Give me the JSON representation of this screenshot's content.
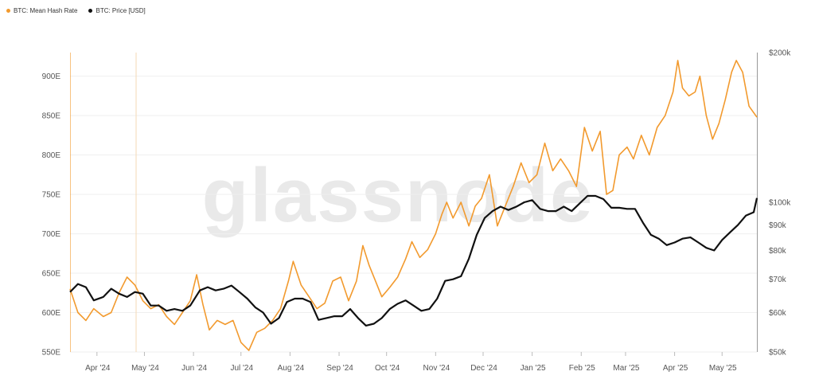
{
  "legend": {
    "items": [
      {
        "label": "BTC: Mean Hash Rate",
        "color": "#f29a2e"
      },
      {
        "label": "BTC: Price [USD]",
        "color": "#111111"
      }
    ]
  },
  "watermark": "glassnode",
  "chart_data": {
    "type": "line",
    "title": "",
    "xlabel": "",
    "ylabel": "",
    "x_tick_labels": [
      "Apr '24",
      "May '24",
      "Jun '24",
      "Jul '24",
      "Aug '24",
      "Sep '24",
      "Oct '24",
      "Nov '24",
      "Dec '24",
      "Jan '25",
      "Feb '25",
      "Mar '25",
      "Apr '25",
      "May '25"
    ],
    "x_range": [
      "2024-03-15",
      "2025-05-23"
    ],
    "left_axis": {
      "ticks": [
        "550E",
        "600E",
        "650E",
        "700E",
        "750E",
        "800E",
        "850E",
        "900E"
      ],
      "ylim": [
        550,
        930
      ],
      "unit": "EH/s"
    },
    "right_axis": {
      "ticks": [
        {
          "label": "$50k",
          "value": 50000
        },
        {
          "label": "$60k",
          "value": 60000
        },
        {
          "label": "$70k",
          "value": 70000
        },
        {
          "label": "$80k",
          "value": 80000
        },
        {
          "label": "$90k",
          "value": 90000
        },
        {
          "label": "$100k",
          "value": 100000
        },
        {
          "label": "$200k",
          "value": 200000
        }
      ],
      "scale": "log",
      "ylim": [
        50000,
        200000
      ]
    },
    "grid": true,
    "legend_position": "top-left",
    "series": [
      {
        "name": "BTC: Mean Hash Rate",
        "axis": "left",
        "color": "#f29a2e",
        "points": [
          [
            "2024-03-15",
            630
          ],
          [
            "2024-03-20",
            600
          ],
          [
            "2024-03-25",
            590
          ],
          [
            "2024-03-30",
            605
          ],
          [
            "2024-04-05",
            595
          ],
          [
            "2024-04-10",
            600
          ],
          [
            "2024-04-15",
            625
          ],
          [
            "2024-04-20",
            645
          ],
          [
            "2024-04-25",
            635
          ],
          [
            "2024-04-30",
            615
          ],
          [
            "2024-05-05",
            605
          ],
          [
            "2024-05-10",
            610
          ],
          [
            "2024-05-15",
            595
          ],
          [
            "2024-05-20",
            585
          ],
          [
            "2024-05-25",
            600
          ],
          [
            "2024-05-30",
            615
          ],
          [
            "2024-06-03",
            648
          ],
          [
            "2024-06-07",
            610
          ],
          [
            "2024-06-11",
            578
          ],
          [
            "2024-06-16",
            590
          ],
          [
            "2024-06-21",
            585
          ],
          [
            "2024-06-26",
            590
          ],
          [
            "2024-07-01",
            562
          ],
          [
            "2024-07-06",
            552
          ],
          [
            "2024-07-11",
            575
          ],
          [
            "2024-07-16",
            580
          ],
          [
            "2024-07-21",
            590
          ],
          [
            "2024-07-26",
            605
          ],
          [
            "2024-07-31",
            640
          ],
          [
            "2024-08-03",
            665
          ],
          [
            "2024-08-08",
            635
          ],
          [
            "2024-08-13",
            620
          ],
          [
            "2024-08-18",
            605
          ],
          [
            "2024-08-23",
            612
          ],
          [
            "2024-08-28",
            640
          ],
          [
            "2024-09-02",
            645
          ],
          [
            "2024-09-07",
            615
          ],
          [
            "2024-09-12",
            640
          ],
          [
            "2024-09-16",
            685
          ],
          [
            "2024-09-20",
            660
          ],
          [
            "2024-09-24",
            640
          ],
          [
            "2024-09-28",
            620
          ],
          [
            "2024-10-03",
            632
          ],
          [
            "2024-10-08",
            645
          ],
          [
            "2024-10-13",
            668
          ],
          [
            "2024-10-17",
            690
          ],
          [
            "2024-10-22",
            670
          ],
          [
            "2024-10-27",
            680
          ],
          [
            "2024-11-01",
            700
          ],
          [
            "2024-11-05",
            725
          ],
          [
            "2024-11-08",
            740
          ],
          [
            "2024-11-12",
            720
          ],
          [
            "2024-11-17",
            740
          ],
          [
            "2024-11-22",
            710
          ],
          [
            "2024-11-26",
            735
          ],
          [
            "2024-11-30",
            745
          ],
          [
            "2024-12-05",
            775
          ],
          [
            "2024-12-10",
            710
          ],
          [
            "2024-12-15",
            735
          ],
          [
            "2024-12-20",
            760
          ],
          [
            "2024-12-25",
            790
          ],
          [
            "2024-12-30",
            765
          ],
          [
            "2025-01-04",
            775
          ],
          [
            "2025-01-09",
            815
          ],
          [
            "2025-01-14",
            780
          ],
          [
            "2025-01-19",
            795
          ],
          [
            "2025-01-24",
            780
          ],
          [
            "2025-01-29",
            760
          ],
          [
            "2025-02-03",
            835
          ],
          [
            "2025-02-08",
            805
          ],
          [
            "2025-02-13",
            830
          ],
          [
            "2025-02-17",
            750
          ],
          [
            "2025-02-21",
            755
          ],
          [
            "2025-02-25",
            800
          ],
          [
            "2025-03-02",
            810
          ],
          [
            "2025-03-06",
            795
          ],
          [
            "2025-03-11",
            825
          ],
          [
            "2025-03-16",
            800
          ],
          [
            "2025-03-21",
            835
          ],
          [
            "2025-03-26",
            850
          ],
          [
            "2025-03-31",
            880
          ],
          [
            "2025-04-03",
            920
          ],
          [
            "2025-04-06",
            885
          ],
          [
            "2025-04-10",
            875
          ],
          [
            "2025-04-14",
            880
          ],
          [
            "2025-04-17",
            900
          ],
          [
            "2025-04-21",
            850
          ],
          [
            "2025-04-25",
            820
          ],
          [
            "2025-04-29",
            840
          ],
          [
            "2025-05-03",
            870
          ],
          [
            "2025-05-07",
            905
          ],
          [
            "2025-05-10",
            920
          ],
          [
            "2025-05-14",
            905
          ],
          [
            "2025-05-18",
            862
          ],
          [
            "2025-05-23",
            848
          ]
        ]
      },
      {
        "name": "BTC: Price [USD]",
        "axis": "right",
        "color": "#111111",
        "points": [
          [
            "2024-03-15",
            66000
          ],
          [
            "2024-03-20",
            68500
          ],
          [
            "2024-03-25",
            67500
          ],
          [
            "2024-03-30",
            63500
          ],
          [
            "2024-04-05",
            64500
          ],
          [
            "2024-04-10",
            67000
          ],
          [
            "2024-04-15",
            65500
          ],
          [
            "2024-04-20",
            64500
          ],
          [
            "2024-04-25",
            66000
          ],
          [
            "2024-04-30",
            65500
          ],
          [
            "2024-05-05",
            62000
          ],
          [
            "2024-05-10",
            62000
          ],
          [
            "2024-05-15",
            60500
          ],
          [
            "2024-05-20",
            61000
          ],
          [
            "2024-05-25",
            60500
          ],
          [
            "2024-05-30",
            62000
          ],
          [
            "2024-06-05",
            66500
          ],
          [
            "2024-06-10",
            67500
          ],
          [
            "2024-06-15",
            66500
          ],
          [
            "2024-06-20",
            67000
          ],
          [
            "2024-06-25",
            68000
          ],
          [
            "2024-06-30",
            66000
          ],
          [
            "2024-07-05",
            64000
          ],
          [
            "2024-07-10",
            61500
          ],
          [
            "2024-07-15",
            60000
          ],
          [
            "2024-07-20",
            57000
          ],
          [
            "2024-07-25",
            58500
          ],
          [
            "2024-07-30",
            63000
          ],
          [
            "2024-08-04",
            64000
          ],
          [
            "2024-08-09",
            64000
          ],
          [
            "2024-08-14",
            63000
          ],
          [
            "2024-08-19",
            58000
          ],
          [
            "2024-08-24",
            58500
          ],
          [
            "2024-08-29",
            59000
          ],
          [
            "2024-09-03",
            59000
          ],
          [
            "2024-09-08",
            61000
          ],
          [
            "2024-09-13",
            58500
          ],
          [
            "2024-09-18",
            56500
          ],
          [
            "2024-09-23",
            57000
          ],
          [
            "2024-09-28",
            58500
          ],
          [
            "2024-10-03",
            61000
          ],
          [
            "2024-10-08",
            62500
          ],
          [
            "2024-10-13",
            63500
          ],
          [
            "2024-10-18",
            62000
          ],
          [
            "2024-10-23",
            60500
          ],
          [
            "2024-10-28",
            61000
          ],
          [
            "2024-11-02",
            64000
          ],
          [
            "2024-11-07",
            69500
          ],
          [
            "2024-11-12",
            70000
          ],
          [
            "2024-11-17",
            71000
          ],
          [
            "2024-11-22",
            77000
          ],
          [
            "2024-11-27",
            86000
          ],
          [
            "2024-12-02",
            93000
          ],
          [
            "2024-12-07",
            96000
          ],
          [
            "2024-12-12",
            98000
          ],
          [
            "2024-12-17",
            96500
          ],
          [
            "2024-12-22",
            98000
          ],
          [
            "2024-12-27",
            100000
          ],
          [
            "2025-01-01",
            101000
          ],
          [
            "2025-01-06",
            97000
          ],
          [
            "2025-01-11",
            96000
          ],
          [
            "2025-01-16",
            96000
          ],
          [
            "2025-01-21",
            98000
          ],
          [
            "2025-01-26",
            96000
          ],
          [
            "2025-01-31",
            99500
          ],
          [
            "2025-02-05",
            103000
          ],
          [
            "2025-02-10",
            103000
          ],
          [
            "2025-02-15",
            101500
          ],
          [
            "2025-02-20",
            97500
          ],
          [
            "2025-02-25",
            97500
          ],
          [
            "2025-03-02",
            97000
          ],
          [
            "2025-03-07",
            97000
          ],
          [
            "2025-03-12",
            91000
          ],
          [
            "2025-03-17",
            86000
          ],
          [
            "2025-03-22",
            84500
          ],
          [
            "2025-03-27",
            82000
          ],
          [
            "2025-04-01",
            83000
          ],
          [
            "2025-04-06",
            84500
          ],
          [
            "2025-04-11",
            85000
          ],
          [
            "2025-04-16",
            83000
          ],
          [
            "2025-04-21",
            81000
          ],
          [
            "2025-04-26",
            80000
          ],
          [
            "2025-05-01",
            84000
          ],
          [
            "2025-05-06",
            87000
          ],
          [
            "2025-05-11",
            90000
          ],
          [
            "2025-05-16",
            94000
          ],
          [
            "2025-05-21",
            95500
          ],
          [
            "2025-05-23",
            102000
          ]
        ]
      }
    ]
  }
}
